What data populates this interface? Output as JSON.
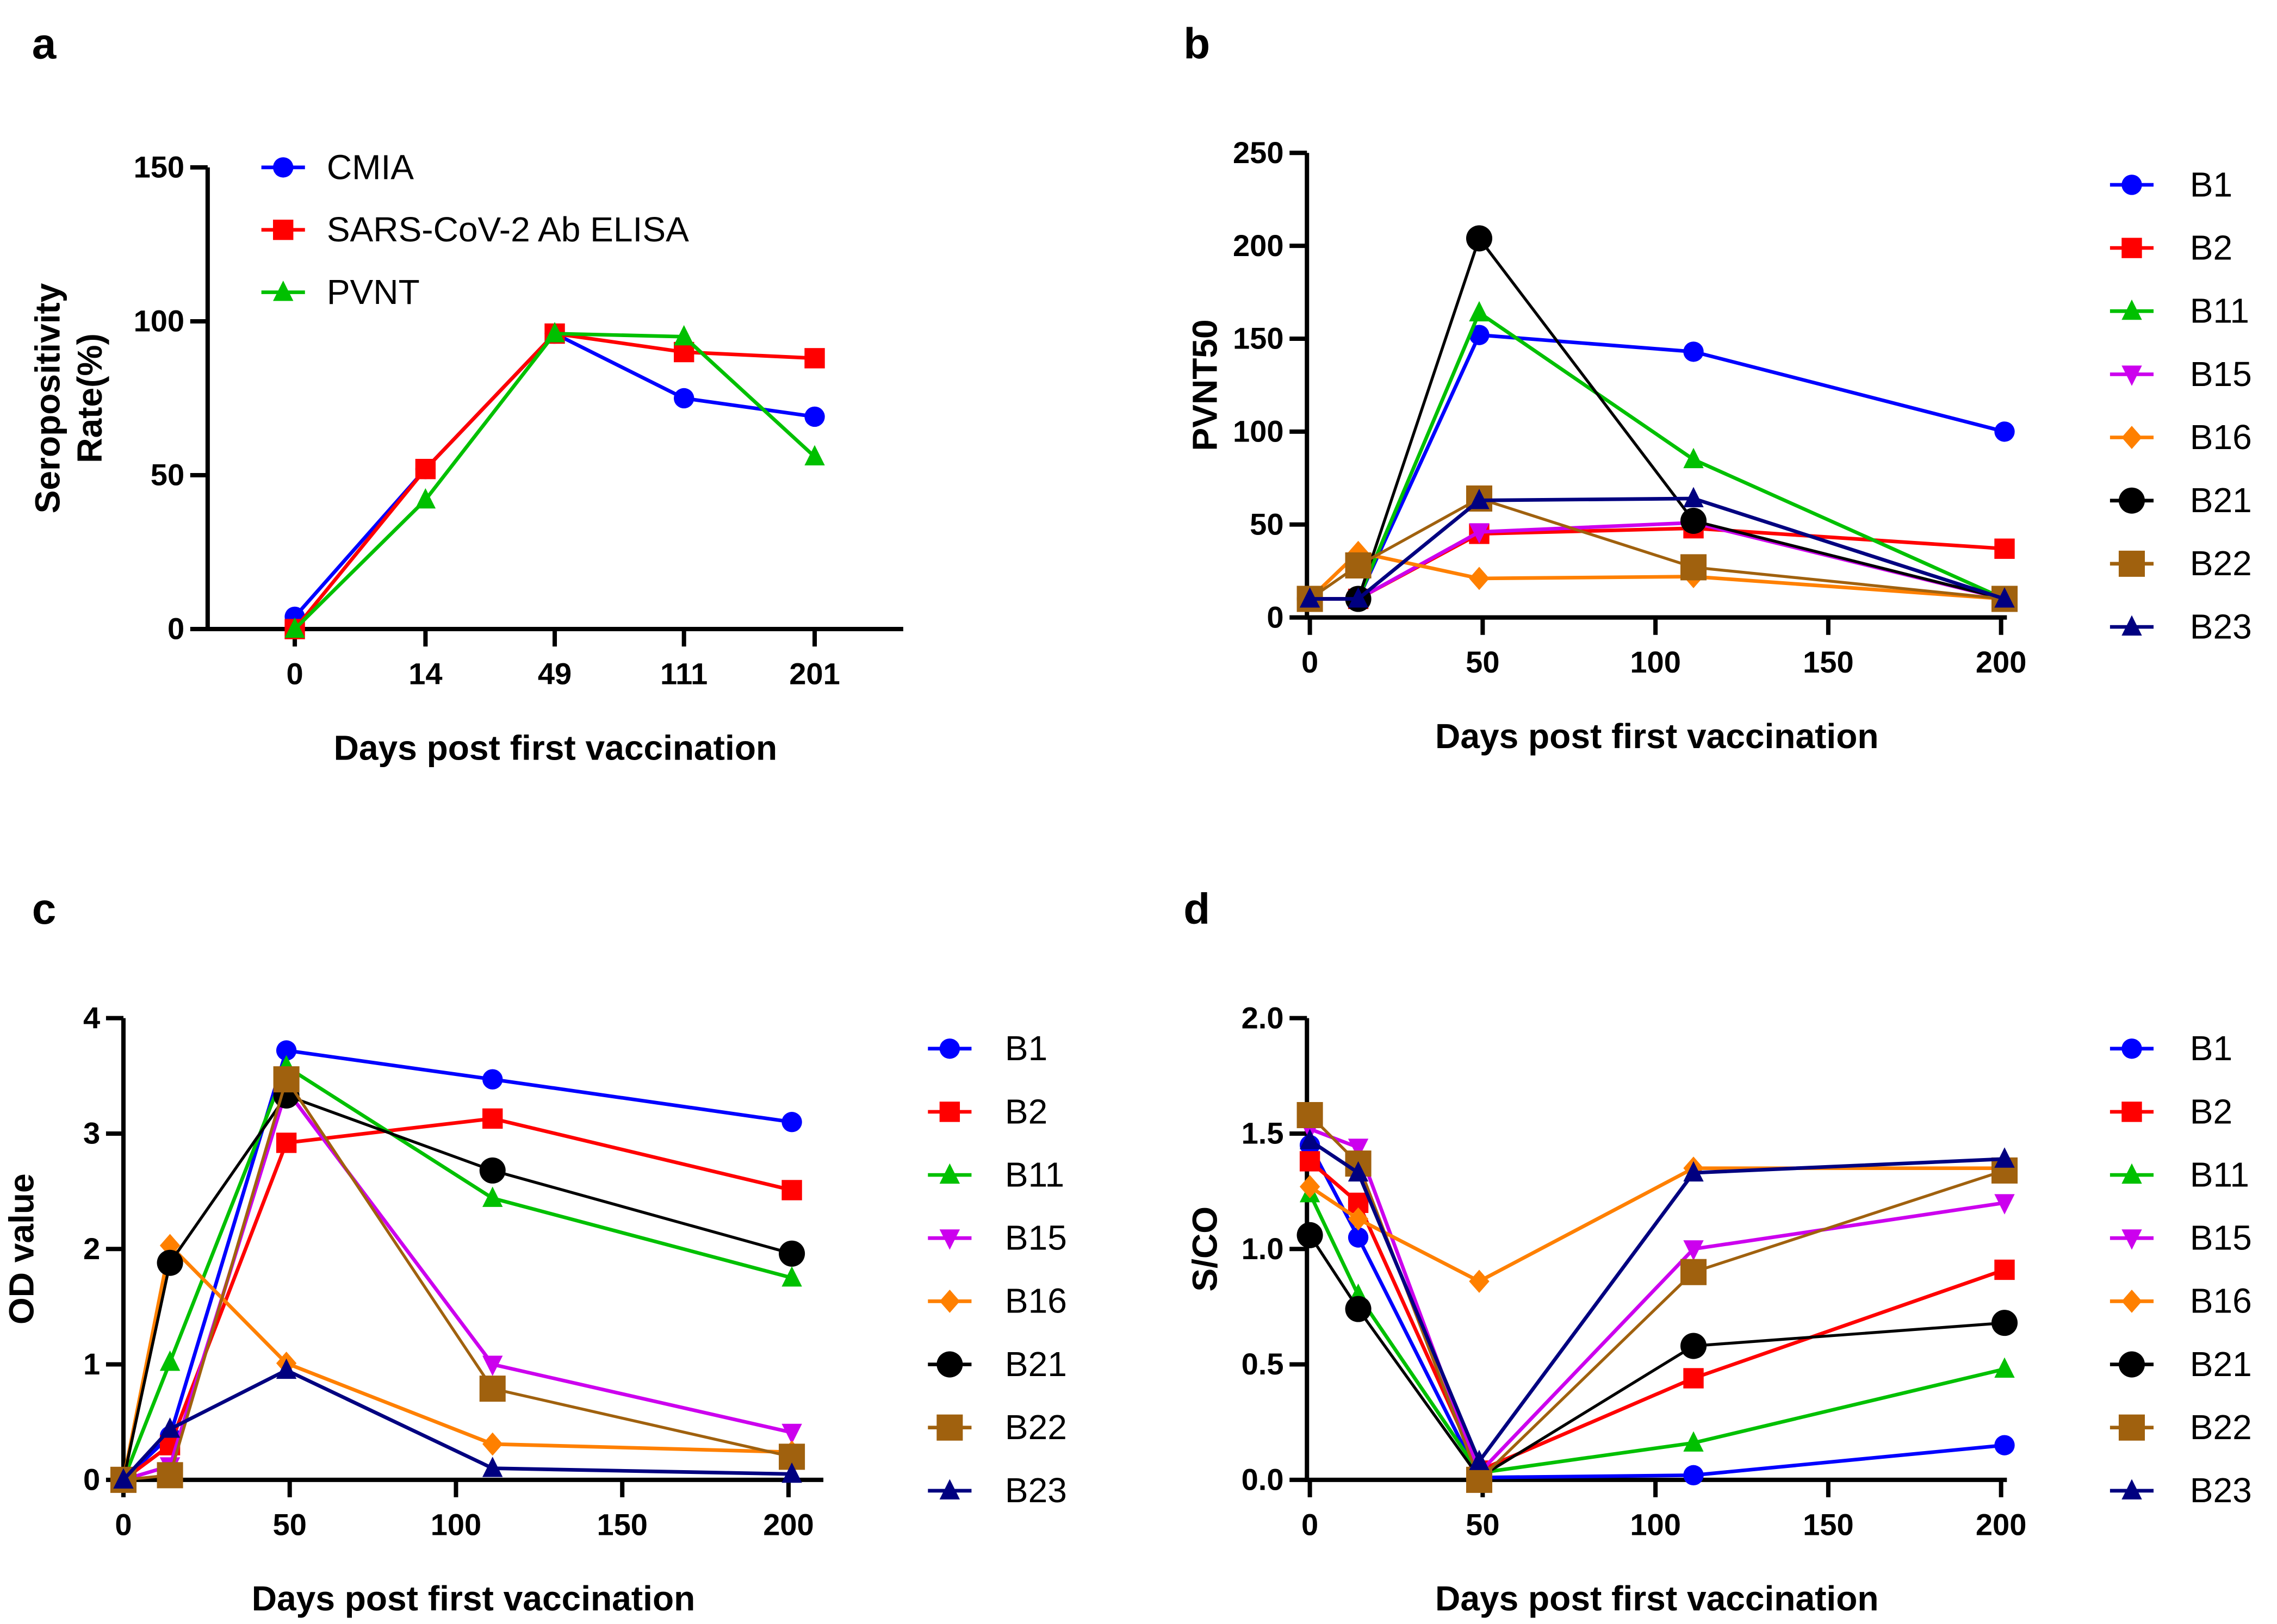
{
  "chart_data": [
    {
      "panel": "a",
      "type": "line",
      "xlabel": "Days post first vaccination",
      "ylabel": "Seropositivity Rate(%)",
      "categories": [
        "0",
        "14",
        "49",
        "111",
        "201"
      ],
      "ylim": [
        0,
        150
      ],
      "yticks": [
        0,
        50,
        100,
        150
      ],
      "legend": "top-left",
      "series": [
        {
          "name": "CMIA",
          "color": "#0000ff",
          "marker": "circle",
          "values": [
            4,
            52,
            96,
            75,
            69
          ]
        },
        {
          "name": "SARS-CoV-2 Ab ELISA",
          "color": "#ff0000",
          "marker": "square",
          "values": [
            0,
            52,
            96,
            90,
            88
          ]
        },
        {
          "name": "PVNT",
          "color": "#00c000",
          "marker": "triangle-up",
          "values": [
            0,
            42,
            96,
            95,
            56
          ]
        }
      ]
    },
    {
      "panel": "b",
      "type": "line",
      "xlabel": "Days post first vaccination",
      "ylabel": "PVNT50",
      "x": [
        0,
        14,
        49,
        111,
        201
      ],
      "xlim": [
        0,
        200
      ],
      "xticks": [
        0,
        50,
        100,
        150,
        200
      ],
      "ylim": [
        0,
        250
      ],
      "yticks": [
        0,
        50,
        100,
        150,
        200,
        250
      ],
      "legend": "right",
      "series": [
        {
          "name": "B1",
          "color": "#0000ff",
          "marker": "circle",
          "values": [
            10,
            10,
            152,
            143,
            100
          ]
        },
        {
          "name": "B2",
          "color": "#ff0000",
          "marker": "square",
          "values": [
            10,
            10,
            45,
            48,
            37
          ]
        },
        {
          "name": "B11",
          "color": "#00c000",
          "marker": "triangle-up",
          "values": [
            10,
            10,
            164,
            85,
            10
          ]
        },
        {
          "name": "B15",
          "color": "#cc00ee",
          "marker": "triangle-down",
          "values": [
            10,
            10,
            46,
            51,
            10
          ]
        },
        {
          "name": "B16",
          "color": "#ff8000",
          "marker": "diamond",
          "values": [
            10,
            35,
            21,
            22,
            10
          ]
        },
        {
          "name": "B21",
          "color": "#000000",
          "marker": "circle",
          "values": [
            10,
            10,
            204,
            52,
            10
          ]
        },
        {
          "name": "B22",
          "color": "#a0610e",
          "marker": "square",
          "values": [
            10,
            28,
            64,
            27,
            10
          ]
        },
        {
          "name": "B23",
          "color": "#000080",
          "marker": "triangle-up",
          "values": [
            10,
            10,
            63,
            64,
            10
          ]
        }
      ]
    },
    {
      "panel": "c",
      "type": "line",
      "xlabel": "Days post first vaccination",
      "ylabel": "OD value",
      "x": [
        0,
        14,
        49,
        111,
        201
      ],
      "xlim": [
        0,
        200
      ],
      "xticks": [
        0,
        50,
        100,
        150,
        200
      ],
      "ylim": [
        0,
        4
      ],
      "yticks": [
        0,
        1,
        2,
        3,
        4
      ],
      "legend": "right",
      "series": [
        {
          "name": "B1",
          "color": "#0000ff",
          "marker": "circle",
          "values": [
            0,
            0.38,
            3.72,
            3.47,
            3.1
          ]
        },
        {
          "name": "B2",
          "color": "#ff0000",
          "marker": "square",
          "values": [
            0,
            0.3,
            2.92,
            3.13,
            2.51
          ]
        },
        {
          "name": "B11",
          "color": "#00c000",
          "marker": "triangle-up",
          "values": [
            0,
            1.02,
            3.58,
            2.44,
            1.75
          ]
        },
        {
          "name": "B15",
          "color": "#cc00ee",
          "marker": "triangle-down",
          "values": [
            0,
            0.12,
            3.38,
            1.0,
            0.41
          ]
        },
        {
          "name": "B16",
          "color": "#ff8000",
          "marker": "diamond",
          "values": [
            0,
            2.03,
            1.01,
            0.31,
            0.24
          ]
        },
        {
          "name": "B21",
          "color": "#000000",
          "marker": "circle",
          "values": [
            0,
            1.88,
            3.33,
            2.68,
            1.96
          ]
        },
        {
          "name": "B22",
          "color": "#a0610e",
          "marker": "square",
          "values": [
            0,
            0.04,
            3.47,
            0.79,
            0.2
          ]
        },
        {
          "name": "B23",
          "color": "#000080",
          "marker": "triangle-up",
          "values": [
            0,
            0.44,
            0.95,
            0.1,
            0.05
          ]
        }
      ]
    },
    {
      "panel": "d",
      "type": "line",
      "xlabel": "Days post first vaccination",
      "ylabel": "S/CO",
      "x": [
        0,
        14,
        49,
        111,
        201
      ],
      "xlim": [
        0,
        200
      ],
      "xticks": [
        0,
        50,
        100,
        150,
        200
      ],
      "ylim": [
        0,
        2
      ],
      "yticks": [
        "0.0",
        "0.5",
        "1.0",
        "1.5",
        "2.0"
      ],
      "legend": "right",
      "series": [
        {
          "name": "B1",
          "color": "#0000ff",
          "marker": "circle",
          "values": [
            1.45,
            1.05,
            0.01,
            0.02,
            0.15
          ]
        },
        {
          "name": "B2",
          "color": "#ff0000",
          "marker": "square",
          "values": [
            1.38,
            1.2,
            0.04,
            0.44,
            0.91
          ]
        },
        {
          "name": "B11",
          "color": "#00c000",
          "marker": "triangle-up",
          "values": [
            1.24,
            0.8,
            0.03,
            0.16,
            0.48
          ]
        },
        {
          "name": "B15",
          "color": "#cc00ee",
          "marker": "triangle-down",
          "values": [
            1.52,
            1.44,
            0.03,
            1.0,
            1.2
          ]
        },
        {
          "name": "B16",
          "color": "#ff8000",
          "marker": "diamond",
          "values": [
            1.27,
            1.13,
            0.86,
            1.35,
            1.35
          ]
        },
        {
          "name": "B21",
          "color": "#000000",
          "marker": "circle",
          "values": [
            1.06,
            0.74,
            0.01,
            0.58,
            0.68
          ]
        },
        {
          "name": "B22",
          "color": "#a0610e",
          "marker": "square",
          "values": [
            1.58,
            1.37,
            0.0,
            0.9,
            1.34
          ]
        },
        {
          "name": "B23",
          "color": "#000080",
          "marker": "triangle-up",
          "values": [
            1.47,
            1.33,
            0.08,
            1.33,
            1.39
          ]
        }
      ]
    }
  ]
}
